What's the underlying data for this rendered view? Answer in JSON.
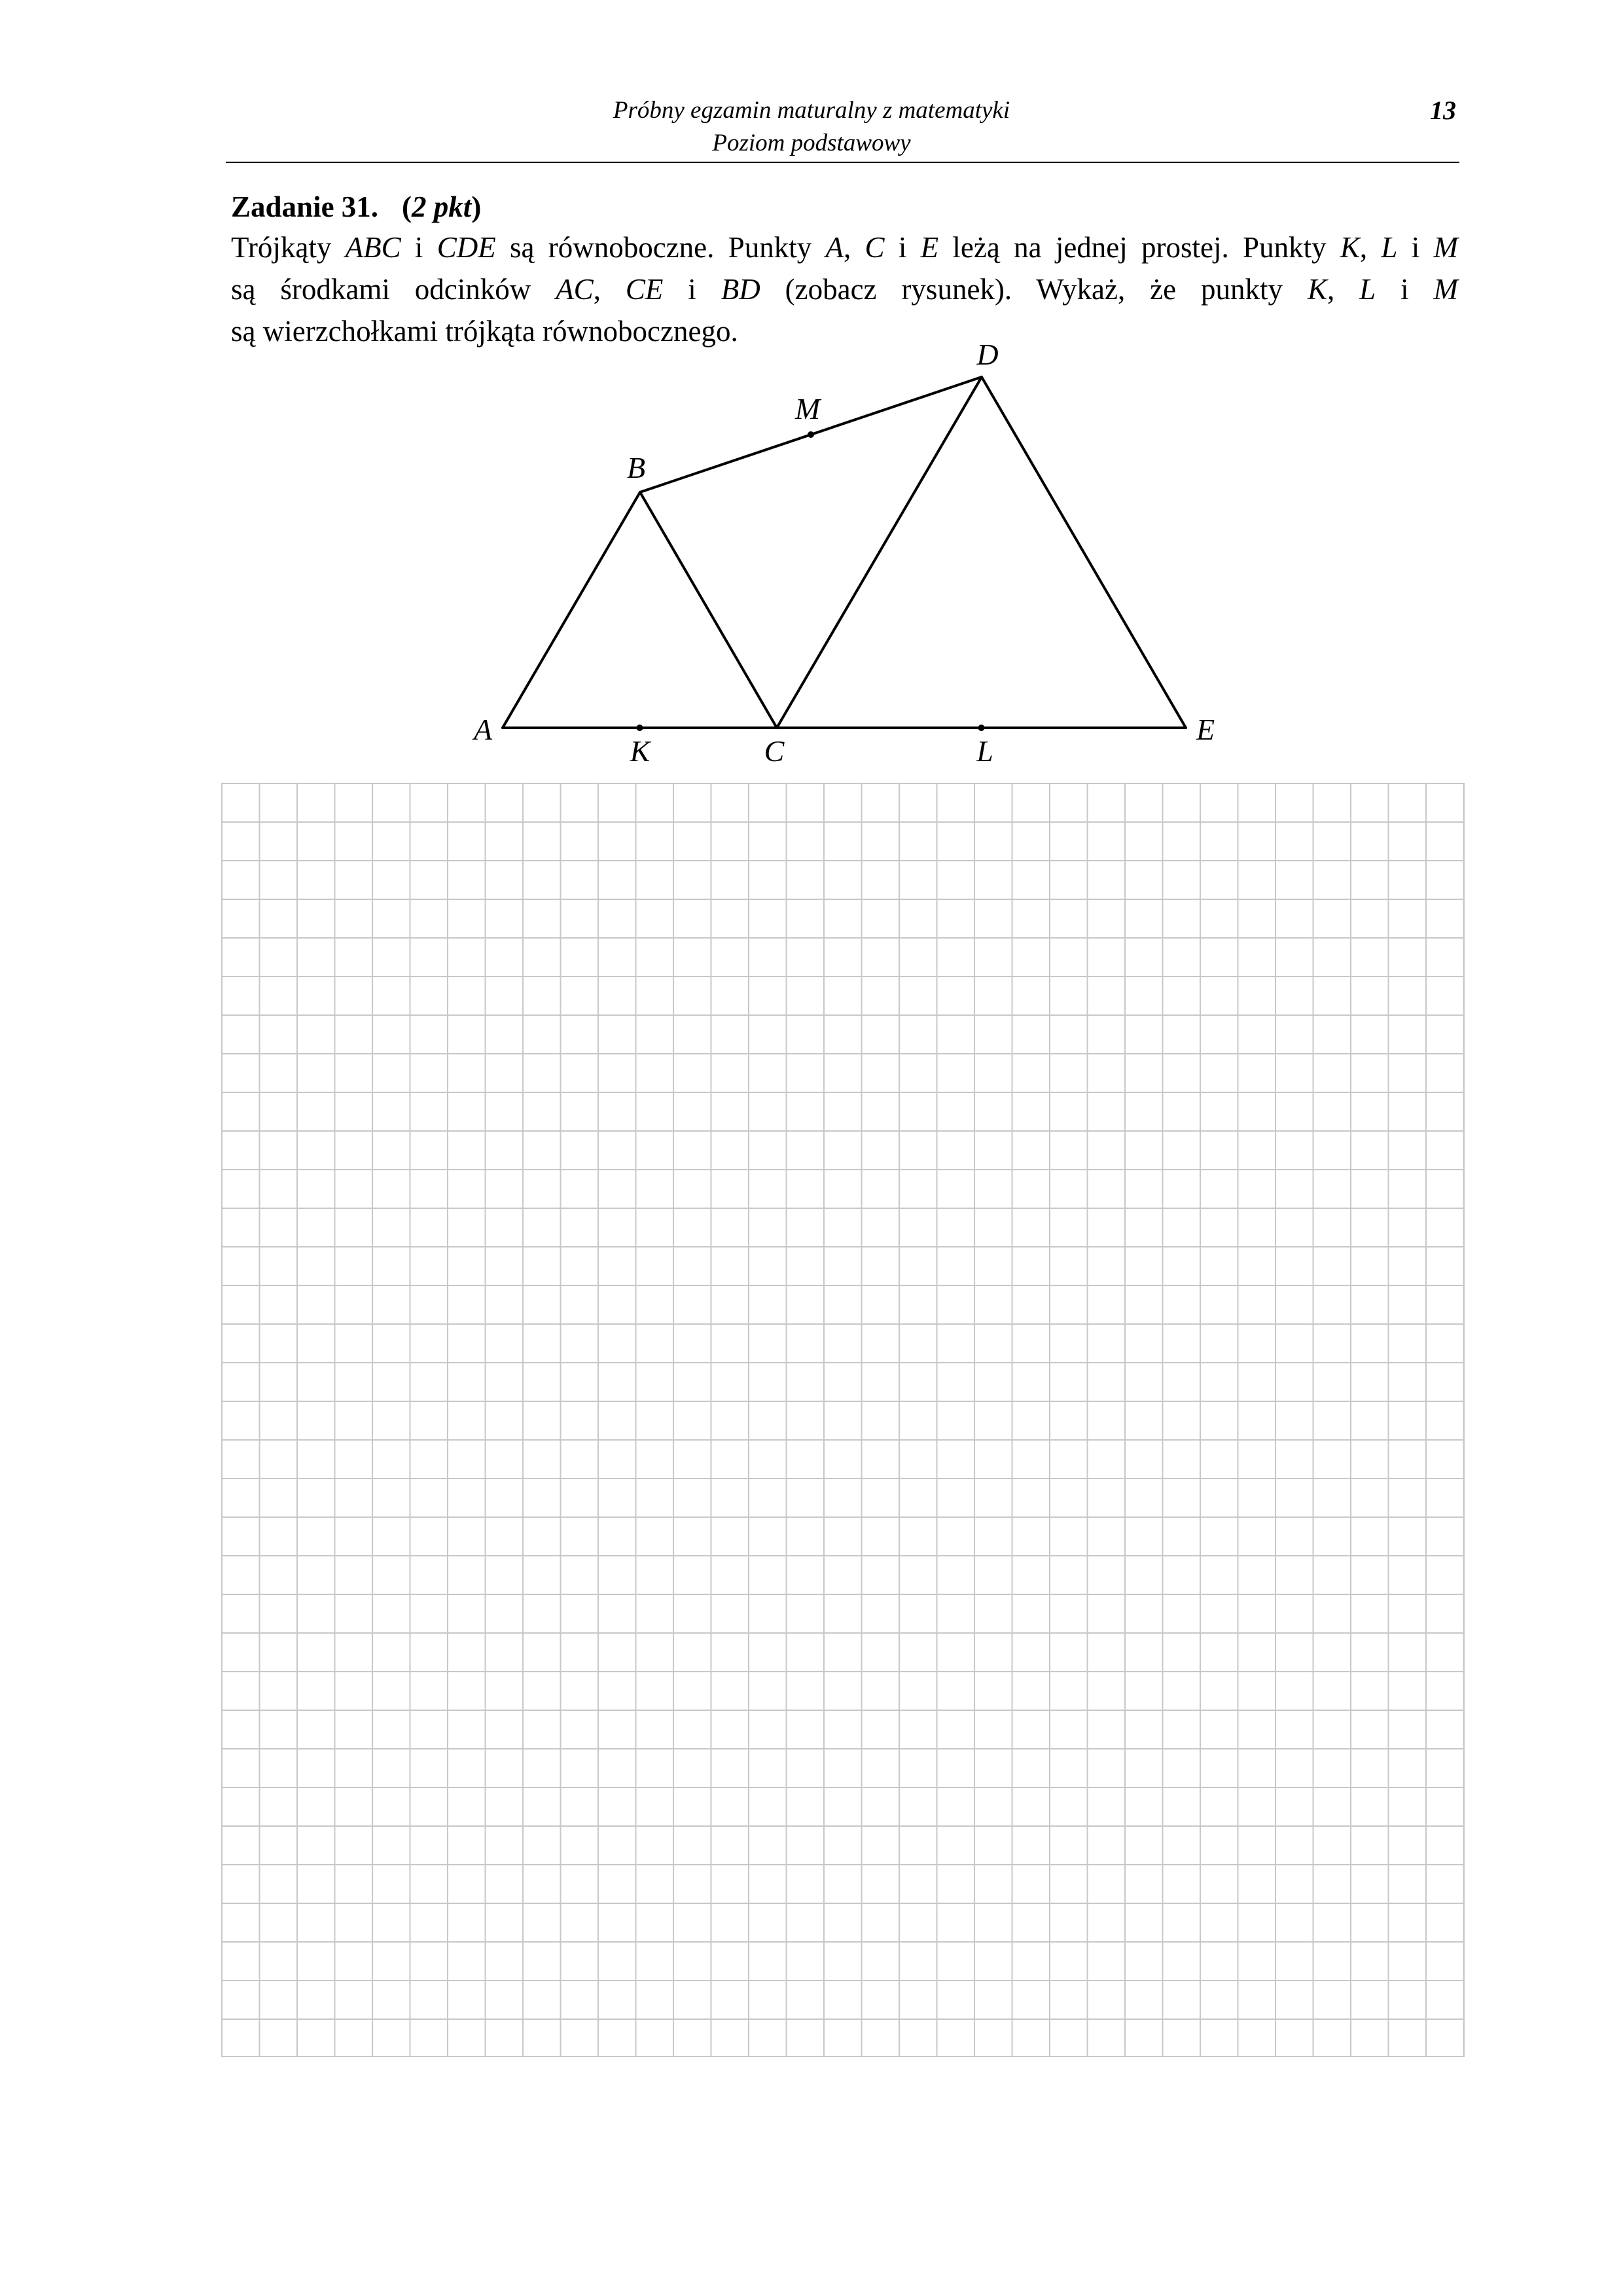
{
  "header": {
    "title": "Próbny egzamin maturalny z matematyki",
    "subtitle": "Poziom podstawowy",
    "page_number": "13"
  },
  "task": {
    "label": "Zadanie 31.",
    "points_open": "(",
    "points": "2 pkt",
    "points_close": ")",
    "line1": [
      {
        "t": "Trójkąty ",
        "i": false
      },
      {
        "t": "ABC",
        "i": true
      },
      {
        "t": " i ",
        "i": false
      },
      {
        "t": "CDE",
        "i": true
      },
      {
        "t": " są równoboczne. Punkty ",
        "i": false
      },
      {
        "t": "A",
        "i": true
      },
      {
        "t": ", ",
        "i": false
      },
      {
        "t": "C",
        "i": true
      },
      {
        "t": " i ",
        "i": false
      },
      {
        "t": "E",
        "i": true
      },
      {
        "t": " leżą na jednej prostej. Punkty ",
        "i": false
      },
      {
        "t": "K",
        "i": true
      },
      {
        "t": ", ",
        "i": false
      },
      {
        "t": "L",
        "i": true
      },
      {
        "t": " i ",
        "i": false
      },
      {
        "t": "M",
        "i": true
      }
    ],
    "line2": [
      {
        "t": "są środkami odcinków ",
        "i": false
      },
      {
        "t": "AC",
        "i": true
      },
      {
        "t": ", ",
        "i": false
      },
      {
        "t": "CE",
        "i": true
      },
      {
        "t": " i ",
        "i": false
      },
      {
        "t": "BD",
        "i": true
      },
      {
        "t": " (zobacz rysunek). Wykaż, że punkty ",
        "i": false
      },
      {
        "t": "K",
        "i": true
      },
      {
        "t": ", ",
        "i": false
      },
      {
        "t": "L",
        "i": true
      },
      {
        "t": " i ",
        "i": false
      },
      {
        "t": "M",
        "i": true
      }
    ],
    "line3": [
      {
        "t": "są wierzchołkami trójkąta równobocznego.",
        "i": false
      }
    ]
  },
  "figure": {
    "point_labels": {
      "A": "A",
      "B": "B",
      "C": "C",
      "D": "D",
      "E": "E",
      "K": "K",
      "L": "L",
      "M": "M"
    },
    "segments": [
      [
        "A",
        "B"
      ],
      [
        "B",
        "C"
      ],
      [
        "A",
        "E"
      ],
      [
        "C",
        "D"
      ],
      [
        "D",
        "E"
      ],
      [
        "B",
        "D"
      ]
    ],
    "midpoints": [
      "K",
      "L",
      "M"
    ]
  },
  "answer_grid": {
    "columns": 33,
    "rows": 33,
    "line_color": "#c8c8c8"
  }
}
